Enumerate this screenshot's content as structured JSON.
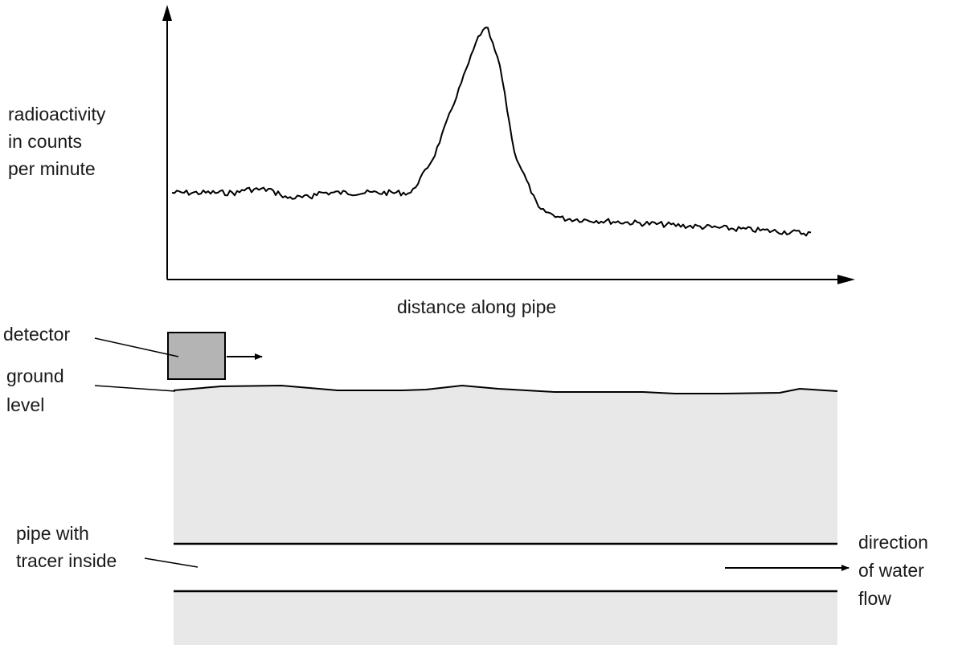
{
  "graph": {
    "y_axis_label": [
      "radioactivity",
      "in counts",
      "per minute"
    ],
    "x_axis_label": "distance along pipe"
  },
  "labels": {
    "detector": "detector",
    "ground_level": [
      "ground",
      "level"
    ],
    "pipe": [
      "pipe with",
      "tracer inside"
    ],
    "water_flow": [
      "direction",
      "of water",
      "flow"
    ]
  },
  "colors": {
    "ground": "#e8e8e8",
    "detector": "#b4b4b4",
    "line": "#000000"
  }
}
